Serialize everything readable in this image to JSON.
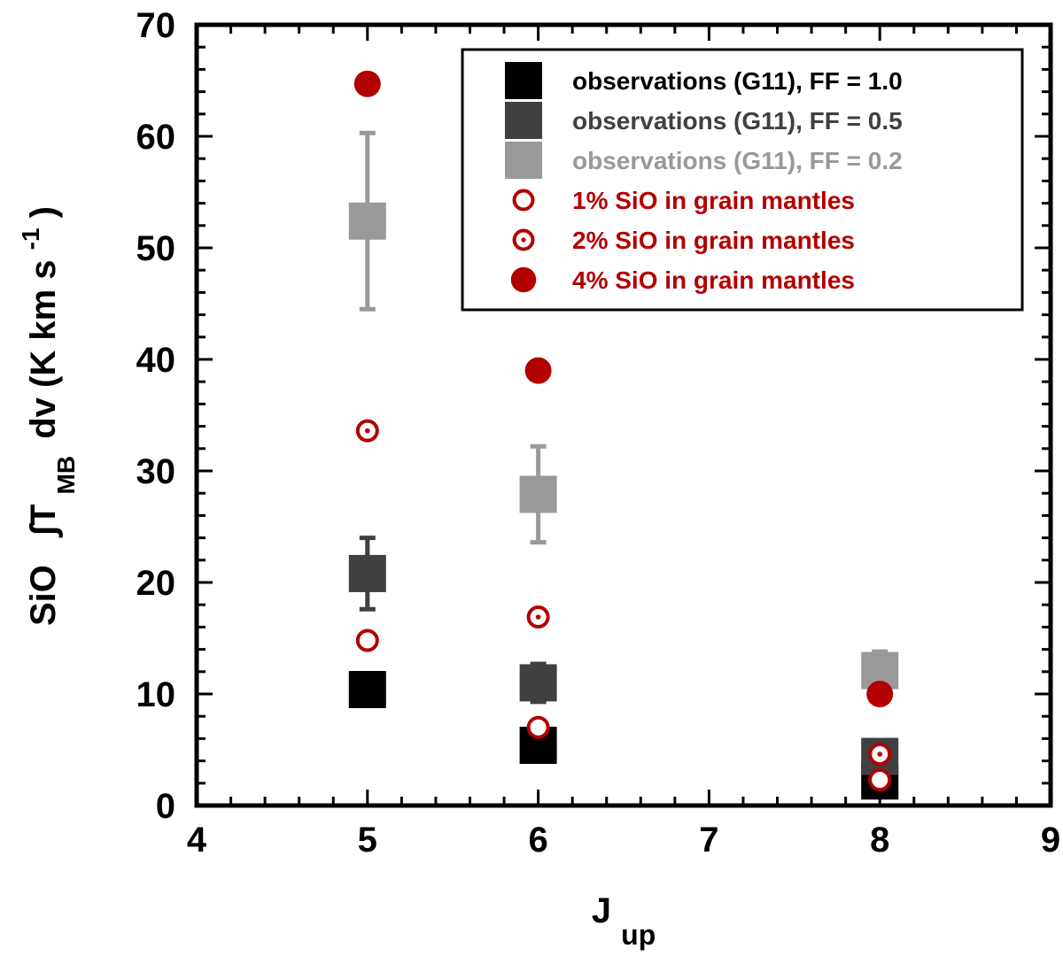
{
  "chart_data": {
    "type": "scatter",
    "xlabel": "J",
    "xlabel_sub": "up",
    "ylabel_parts": [
      "SiO",
      "∫T",
      "MB",
      "dv (K km s",
      "-1",
      ")"
    ],
    "xlim": [
      4,
      9
    ],
    "ylim": [
      0,
      70
    ],
    "xticks": [
      4,
      5,
      6,
      7,
      8,
      9
    ],
    "yticks": [
      0,
      10,
      20,
      30,
      40,
      50,
      60,
      70
    ],
    "legend_position": "top-right",
    "series": [
      {
        "name": "observations (G11), FF = 1.0",
        "marker": "square",
        "color": "#000000",
        "points": [
          {
            "x": 5,
            "y": 10.4,
            "err": 1.3
          },
          {
            "x": 6,
            "y": 5.4,
            "err": 1.2
          },
          {
            "x": 8,
            "y": 2.2,
            "err": 0.5
          }
        ]
      },
      {
        "name": "observations (G11), FF = 0.5",
        "marker": "square",
        "color": "#404040",
        "points": [
          {
            "x": 5,
            "y": 20.8,
            "err": 3.2
          },
          {
            "x": 6,
            "y": 11.0,
            "err": 1.7
          },
          {
            "x": 8,
            "y": 4.4,
            "err": 1.4
          }
        ]
      },
      {
        "name": "observations (G11), FF = 0.2",
        "marker": "square",
        "color": "#999999",
        "points": [
          {
            "x": 5,
            "y": 52.4,
            "err": 7.9
          },
          {
            "x": 6,
            "y": 27.9,
            "err": 4.3
          },
          {
            "x": 8,
            "y": 12.1,
            "err": 1.7
          }
        ]
      },
      {
        "name": "1% SiO in grain mantles",
        "marker": "open-circle",
        "color": "#b30000",
        "points": [
          {
            "x": 5,
            "y": 14.8
          },
          {
            "x": 6,
            "y": 7.0
          },
          {
            "x": 8,
            "y": 2.3
          }
        ]
      },
      {
        "name": "2% SiO in grain mantles",
        "marker": "dotted-circle",
        "color": "#b30000",
        "points": [
          {
            "x": 5,
            "y": 33.6
          },
          {
            "x": 6,
            "y": 16.9
          },
          {
            "x": 8,
            "y": 4.6
          }
        ]
      },
      {
        "name": "4% SiO in grain mantles",
        "marker": "filled-circle",
        "color": "#b30000",
        "points": [
          {
            "x": 5,
            "y": 64.7
          },
          {
            "x": 6,
            "y": 39.0
          },
          {
            "x": 8,
            "y": 10.0
          }
        ]
      }
    ]
  }
}
